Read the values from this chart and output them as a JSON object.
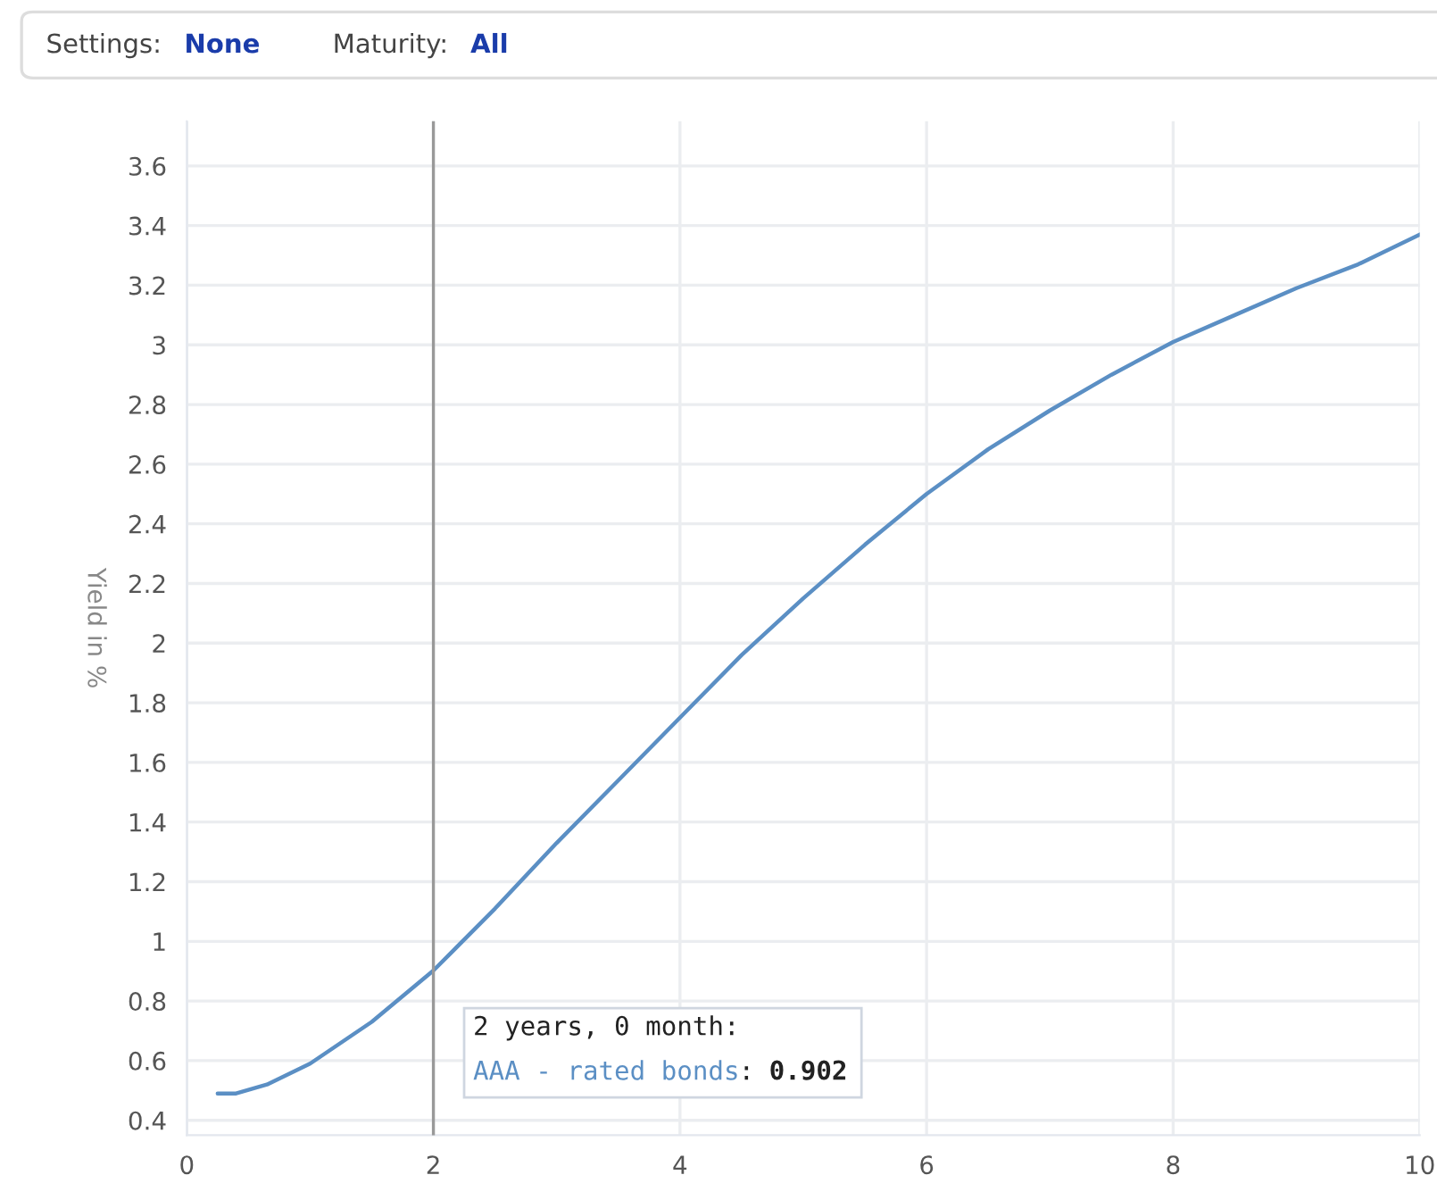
{
  "chart_data": {
    "type": "line",
    "ylabel": "Yield in %",
    "annotations": [
      "Settings:",
      "None",
      "Maturity:",
      "All",
      {
        "text": "2 years, 0 month:",
        "x": 2,
        "y": 0.902
      },
      ":",
      "0.902"
    ],
    "x": [
      0.25,
      0.4,
      0.65,
      1,
      1.5,
      2,
      2.5,
      3,
      3.5,
      4,
      4.5,
      5,
      5.5,
      6,
      6.5,
      7,
      7.5,
      8,
      8.5,
      9,
      9.5,
      10
    ],
    "series": [
      {
        "name": "AAA - rated bonds",
        "color": "#5b8fc4",
        "values": [
          0.49,
          0.49,
          0.52,
          0.59,
          0.73,
          0.902,
          1.11,
          1.33,
          1.54,
          1.75,
          1.96,
          2.15,
          2.33,
          2.5,
          2.65,
          2.78,
          2.9,
          3.01,
          3.1,
          3.19,
          3.27,
          3.37
        ]
      }
    ],
    "xlim": [
      0,
      10
    ],
    "xticks": [
      0,
      2,
      4,
      6,
      8,
      10
    ],
    "ylim": [
      0.35,
      3.75
    ],
    "yticks": [
      0.4,
      0.6,
      0.8,
      1,
      1.2,
      1.4,
      1.6,
      1.8,
      2,
      2.2,
      2.4,
      2.6,
      2.8,
      3,
      3.2,
      3.4,
      3.6
    ],
    "ref_lines": [
      {
        "axis": "x",
        "value": 2,
        "color": "#999999"
      }
    ],
    "grid": true,
    "legend": false,
    "marker": "none",
    "line_style": "solid"
  }
}
